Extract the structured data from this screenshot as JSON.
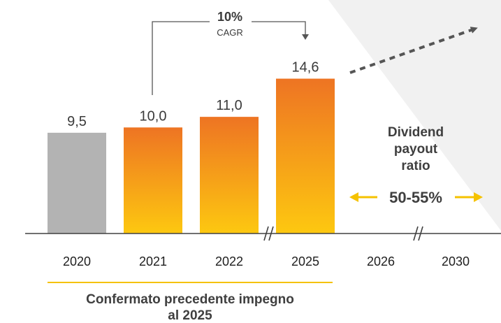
{
  "chart_data": {
    "type": "bar",
    "categories": [
      "2020",
      "2021",
      "2022",
      "2025",
      "2026",
      "2030"
    ],
    "values": [
      9.5,
      10.0,
      11.0,
      14.6,
      null,
      null
    ],
    "value_labels": [
      "9,5",
      "10,0",
      "11,0",
      "14,6",
      "",
      ""
    ],
    "ylim": [
      0,
      17
    ],
    "grid": false,
    "annotations": {
      "cagr_value": "10%",
      "cagr_label": "CAGR",
      "payout_lines": [
        "Dividend",
        "payout",
        "ratio"
      ],
      "payout_range": "50-55%",
      "footnote_lines": [
        "Confermato precedente impegno",
        "al 2025"
      ]
    },
    "colors": {
      "historic": "#b3b3b3",
      "gradient_top": "#ee7423",
      "gradient_bottom": "#fdc810",
      "accent_yellow": "#f5c200",
      "axis": "#404040",
      "dashed_arrow": "#555555",
      "background_triangle": "#f1f1f1"
    }
  }
}
